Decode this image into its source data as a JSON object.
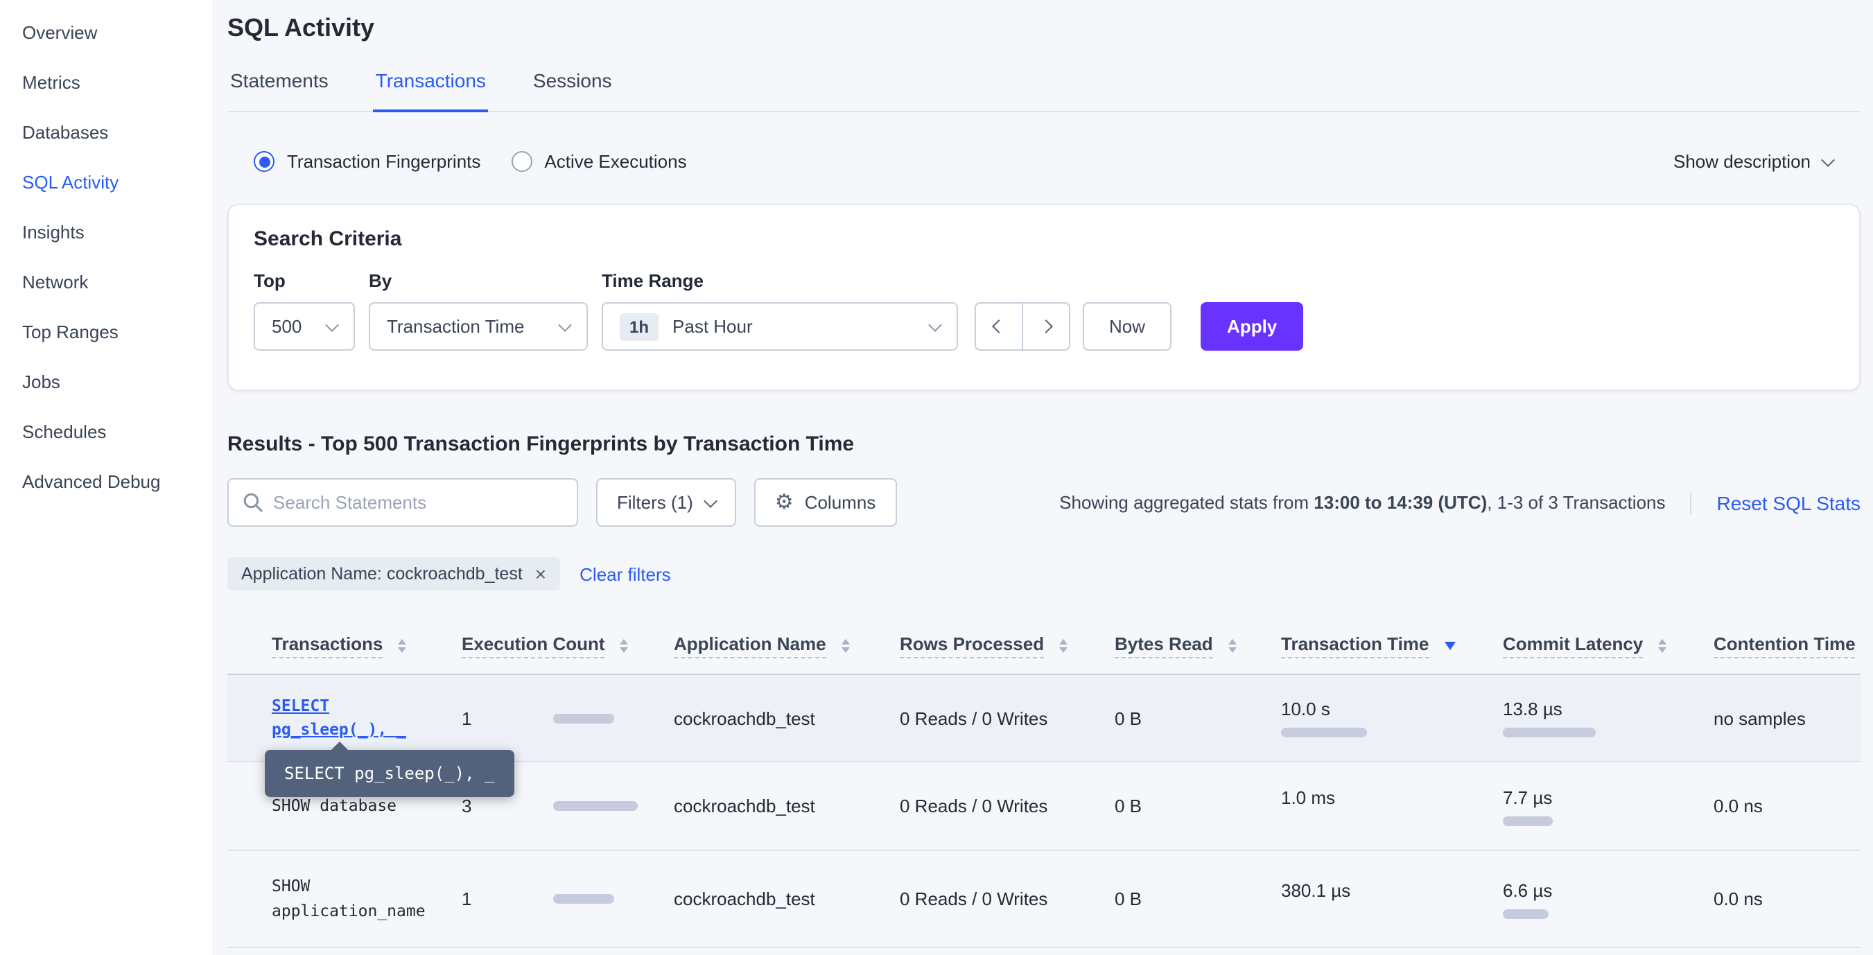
{
  "colors": {
    "accent": "#2a5cf4",
    "purple": "#6933ff",
    "bar": "#c6cbdd",
    "tooltip-bg": "#53627c"
  },
  "sidebar": {
    "items": [
      {
        "label": "Overview"
      },
      {
        "label": "Metrics"
      },
      {
        "label": "Databases"
      },
      {
        "label": "SQL Activity"
      },
      {
        "label": "Insights"
      },
      {
        "label": "Network"
      },
      {
        "label": "Top Ranges"
      },
      {
        "label": "Jobs"
      },
      {
        "label": "Schedules"
      },
      {
        "label": "Advanced Debug"
      }
    ]
  },
  "page": {
    "title": "SQL Activity",
    "tabs": [
      {
        "label": "Statements"
      },
      {
        "label": "Transactions"
      },
      {
        "label": "Sessions"
      }
    ]
  },
  "view_toggle": {
    "fingerprints_label": "Transaction Fingerprints",
    "active_executions_label": "Active Executions",
    "show_description_label": "Show description"
  },
  "search_criteria": {
    "title": "Search Criteria",
    "top_label": "Top",
    "top_value": "500",
    "by_label": "By",
    "by_value": "Transaction Time",
    "time_range_label": "Time Range",
    "time_range_badge": "1h",
    "time_range_value": "Past Hour",
    "now_label": "Now",
    "apply_label": "Apply"
  },
  "results": {
    "heading": "Results - Top 500 Transaction Fingerprints by Transaction Time",
    "search_placeholder": "Search Statements",
    "filters_label": "Filters (1)",
    "columns_label": "Columns",
    "stats_prefix": "Showing aggregated stats from ",
    "stats_bold": "13:00 to 14:39 (UTC)",
    "stats_suffix": ", 1-3 of 3 Transactions",
    "reset_label": "Reset SQL Stats",
    "filter_chip": "Application Name: cockroachdb_test",
    "clear_filters": "Clear filters"
  },
  "tooltip": {
    "text": "SELECT pg_sleep(_), _"
  },
  "table": {
    "columns": [
      {
        "label": "Transactions"
      },
      {
        "label": "Execution Count"
      },
      {
        "label": "Application Name"
      },
      {
        "label": "Rows Processed"
      },
      {
        "label": "Bytes Read"
      },
      {
        "label": "Transaction Time"
      },
      {
        "label": "Commit Latency"
      },
      {
        "label": "Contention Time"
      }
    ],
    "sorted_column": "Transaction Time",
    "sort_direction": "desc",
    "rows": [
      {
        "transaction": "SELECT pg_sleep(_), _",
        "execution_count": "1",
        "execution_bar": 44,
        "application_name": "cockroachdb_test",
        "rows_processed": "0 Reads / 0 Writes",
        "bytes_read": "0 B",
        "transaction_time": "10.0 s",
        "transaction_time_bar": 62,
        "commit_latency": "13.8 µs",
        "commit_latency_bar": 67,
        "contention_time": "no samples"
      },
      {
        "transaction": "SHOW database",
        "execution_count": "3",
        "execution_bar": 61,
        "application_name": "cockroachdb_test",
        "rows_processed": "0 Reads / 0 Writes",
        "bytes_read": "0 B",
        "transaction_time": "1.0 ms",
        "transaction_time_bar": 0,
        "commit_latency": "7.7 µs",
        "commit_latency_bar": 36,
        "contention_time": "0.0 ns"
      },
      {
        "transaction": "SHOW application_name",
        "execution_count": "1",
        "execution_bar": 44,
        "application_name": "cockroachdb_test",
        "rows_processed": "0 Reads / 0 Writes",
        "bytes_read": "0 B",
        "transaction_time": "380.1 µs",
        "transaction_time_bar": 0,
        "commit_latency": "6.6 µs",
        "commit_latency_bar": 33,
        "contention_time": "0.0 ns"
      }
    ]
  }
}
